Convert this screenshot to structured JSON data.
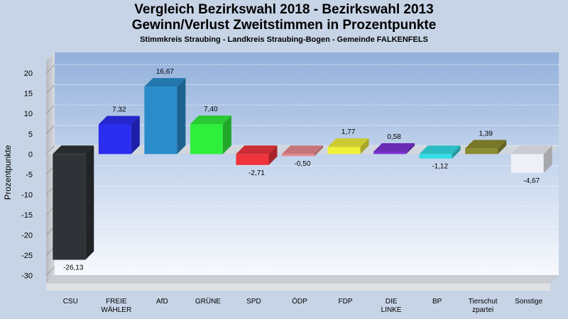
{
  "chart_data": {
    "type": "bar",
    "title": "Vergleich Bezirkswahl 2018 - Bezirkswahl 2013",
    "subtitle": "Gewinn/Verlust Zweitstimmen in Prozentpunkte",
    "subtitle2": "Stimmkreis Straubing - Landkreis Straubing-Bogen - Gemeinde FALKENFELS",
    "ylabel": "Prozentpunkte",
    "ylim": [
      -32,
      23
    ],
    "yticks": [
      20,
      15,
      10,
      5,
      0,
      -5,
      -10,
      -15,
      -20,
      -25,
      -30
    ],
    "grid": true,
    "categories": [
      [
        "CSU"
      ],
      [
        "FREIE",
        "WÄHLER"
      ],
      [
        "AfD"
      ],
      [
        "GRÜNE"
      ],
      [
        "SPD"
      ],
      [
        "ÖDP"
      ],
      [
        "FDP"
      ],
      [
        "DIE",
        "LINKE"
      ],
      [
        "BP"
      ],
      [
        "Tierschut",
        "zpartei"
      ],
      [
        "Sonstige"
      ]
    ],
    "values": [
      -26.13,
      7.32,
      16.67,
      7.4,
      -2.71,
      -0.5,
      1.77,
      0.58,
      -1.12,
      1.39,
      -4.67
    ],
    "labels": [
      "-26,13",
      "7,32",
      "16,67",
      "7,40",
      "-2,71",
      "-0,50",
      "1,77",
      "0,58",
      "-1,12",
      "1,39",
      "-4,67"
    ],
    "colors": [
      "#2f3236",
      "#2b2df0",
      "#2a8ccb",
      "#30ee3c",
      "#f0343c",
      "#e88a8e",
      "#f0ef3a",
      "#7b33d4",
      "#34dde6",
      "#8c8c30",
      "#eef0f6"
    ]
  }
}
